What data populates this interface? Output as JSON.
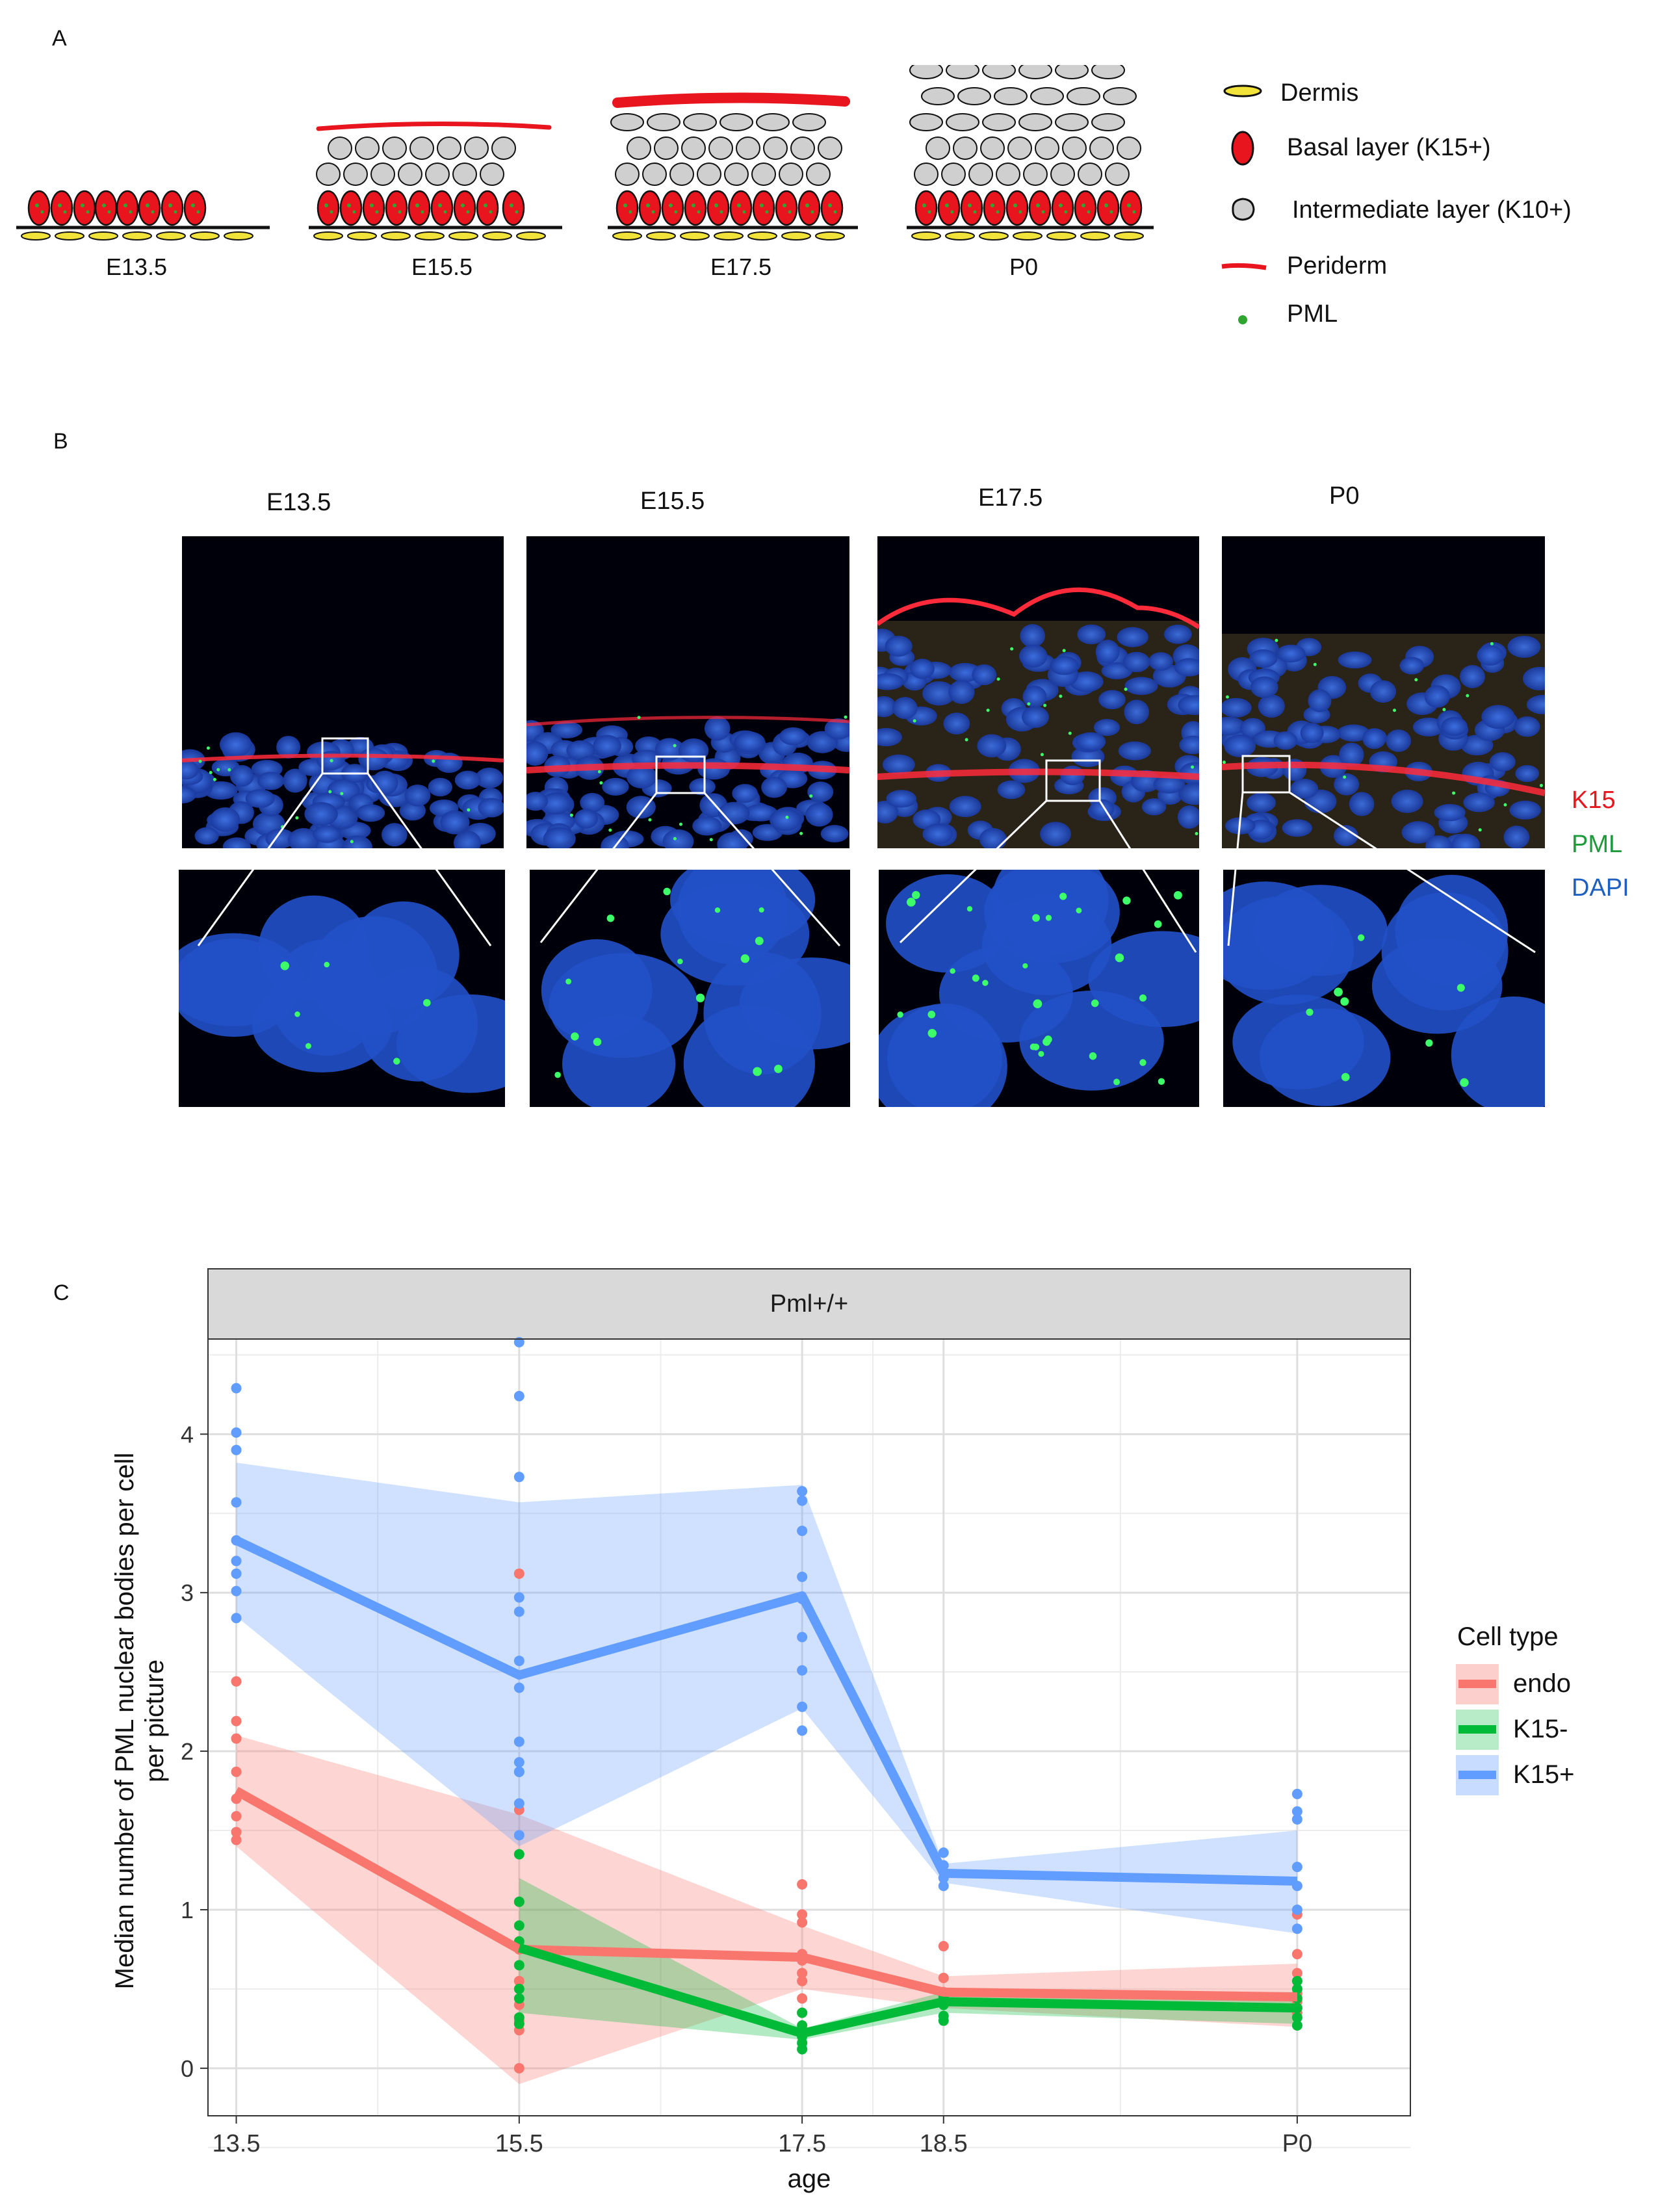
{
  "panel_a": {
    "letter": "A",
    "stages": [
      "E13.5",
      "E15.5",
      "E17.5",
      "P0"
    ],
    "legend": [
      {
        "icon": "dermis-icon",
        "label": "Dermis"
      },
      {
        "icon": "basal-cell-icon",
        "label": "Basal layer (K15+)"
      },
      {
        "icon": "intermediate-cell-icon",
        "label": "Intermediate layer (K10+)"
      },
      {
        "icon": "periderm-icon",
        "label": "Periderm"
      },
      {
        "icon": "pml-dot-icon",
        "label": "PML"
      }
    ],
    "colors": {
      "basal": "#e8141e",
      "intermediate": "#cfcfcf",
      "dermis": "#f2e33a",
      "periderm": "#e8141e",
      "pml": "#2fa52f"
    }
  },
  "panel_b": {
    "letter": "B",
    "stages": [
      "E13.5",
      "E15.5",
      "E17.5",
      "P0"
    ],
    "channels": [
      {
        "label": "K15",
        "color": "#e8141e"
      },
      {
        "label": "PML",
        "color": "#1f9a3a"
      },
      {
        "label": "DAPI",
        "color": "#1f5fbf"
      }
    ]
  },
  "panel_c": {
    "letter": "C",
    "facet": "Pml+/+",
    "legend_title": "Cell type",
    "legend": [
      {
        "label": "endo",
        "color": "#f8766d"
      },
      {
        "label": "K15-",
        "color": "#00ba38"
      },
      {
        "label": "K15+",
        "color": "#619cff"
      }
    ]
  },
  "chart_data": {
    "type": "line",
    "title": "Pml+/+",
    "xlabel": "age",
    "ylabel": "Median number of PML nuclear bodies per cell per picture",
    "categories": [
      "13.5",
      "15.5",
      "17.5",
      "18.5",
      "P0"
    ],
    "x_positions": [
      13.5,
      15.5,
      17.5,
      18.5,
      21
    ],
    "yticks": [
      0,
      1,
      2,
      3,
      4
    ],
    "ylim": [
      -0.3,
      4.6
    ],
    "grid": true,
    "legend_position": "right",
    "series": [
      {
        "name": "endo",
        "color": "#f8766d",
        "x": [
          13.5,
          15.5,
          17.5,
          18.5,
          21
        ],
        "values": [
          1.75,
          0.75,
          0.7,
          0.48,
          0.45
        ],
        "ci_low": [
          1.4,
          -0.1,
          0.5,
          0.38,
          0.26
        ],
        "ci_high": [
          2.1,
          1.6,
          0.9,
          0.58,
          0.66
        ],
        "points": [
          [
            13.5,
            2.44
          ],
          [
            13.5,
            2.19
          ],
          [
            13.5,
            2.08
          ],
          [
            13.5,
            1.87
          ],
          [
            13.5,
            1.7
          ],
          [
            13.5,
            1.59
          ],
          [
            13.5,
            1.49
          ],
          [
            13.5,
            1.44
          ],
          [
            15.5,
            3.12
          ],
          [
            15.5,
            1.63
          ],
          [
            15.5,
            1.05
          ],
          [
            15.5,
            0.75
          ],
          [
            15.5,
            0.55
          ],
          [
            15.5,
            0.4
          ],
          [
            15.5,
            0.3
          ],
          [
            15.5,
            0.24
          ],
          [
            15.5,
            0.0
          ],
          [
            17.5,
            1.16
          ],
          [
            17.5,
            0.97
          ],
          [
            17.5,
            0.92
          ],
          [
            17.5,
            0.72
          ],
          [
            17.5,
            0.68
          ],
          [
            17.5,
            0.6
          ],
          [
            17.5,
            0.55
          ],
          [
            17.5,
            0.44
          ],
          [
            17.5,
            0.35
          ],
          [
            18.5,
            0.77
          ],
          [
            18.5,
            0.57
          ],
          [
            18.5,
            0.48
          ],
          [
            18.5,
            0.42
          ],
          [
            21,
            0.97
          ],
          [
            21,
            0.72
          ],
          [
            21,
            0.6
          ],
          [
            21,
            0.47
          ],
          [
            21,
            0.42
          ],
          [
            21,
            0.35
          ]
        ]
      },
      {
        "name": "K15-",
        "color": "#00ba38",
        "x": [
          15.5,
          17.5,
          18.5,
          21
        ],
        "values": [
          0.76,
          0.22,
          0.42,
          0.38
        ],
        "ci_low": [
          0.35,
          0.18,
          0.35,
          0.28
        ],
        "ci_high": [
          1.2,
          0.25,
          0.48,
          0.48
        ],
        "points": [
          [
            15.5,
            1.87
          ],
          [
            15.5,
            1.35
          ],
          [
            15.5,
            1.05
          ],
          [
            15.5,
            0.9
          ],
          [
            15.5,
            0.8
          ],
          [
            15.5,
            0.65
          ],
          [
            15.5,
            0.5
          ],
          [
            15.5,
            0.44
          ],
          [
            15.5,
            0.32
          ],
          [
            15.5,
            0.28
          ],
          [
            17.5,
            0.35
          ],
          [
            17.5,
            0.27
          ],
          [
            17.5,
            0.2
          ],
          [
            17.5,
            0.16
          ],
          [
            17.5,
            0.12
          ],
          [
            18.5,
            0.45
          ],
          [
            18.5,
            0.4
          ],
          [
            18.5,
            0.33
          ],
          [
            18.5,
            0.3
          ],
          [
            21,
            0.55
          ],
          [
            21,
            0.5
          ],
          [
            21,
            0.44
          ],
          [
            21,
            0.38
          ],
          [
            21,
            0.32
          ],
          [
            21,
            0.27
          ]
        ]
      },
      {
        "name": "K15+",
        "color": "#619cff",
        "x": [
          13.5,
          15.5,
          17.5,
          18.5,
          21
        ],
        "values": [
          3.33,
          2.48,
          2.98,
          1.23,
          1.18
        ],
        "ci_low": [
          2.85,
          1.4,
          2.27,
          1.17,
          0.85
        ],
        "ci_high": [
          3.82,
          3.57,
          3.68,
          1.29,
          1.5
        ],
        "points": [
          [
            13.5,
            4.29
          ],
          [
            13.5,
            4.01
          ],
          [
            13.5,
            3.9
          ],
          [
            13.5,
            3.57
          ],
          [
            13.5,
            3.33
          ],
          [
            13.5,
            3.2
          ],
          [
            13.5,
            3.12
          ],
          [
            13.5,
            3.01
          ],
          [
            13.5,
            2.84
          ],
          [
            15.5,
            4.58
          ],
          [
            15.5,
            4.24
          ],
          [
            15.5,
            3.73
          ],
          [
            15.5,
            2.97
          ],
          [
            15.5,
            2.88
          ],
          [
            15.5,
            2.57
          ],
          [
            15.5,
            2.4
          ],
          [
            15.5,
            2.06
          ],
          [
            15.5,
            1.93
          ],
          [
            15.5,
            1.87
          ],
          [
            15.5,
            1.67
          ],
          [
            15.5,
            1.47
          ],
          [
            17.5,
            3.64
          ],
          [
            17.5,
            3.58
          ],
          [
            17.5,
            3.39
          ],
          [
            17.5,
            3.1
          ],
          [
            17.5,
            2.96
          ],
          [
            17.5,
            2.72
          ],
          [
            17.5,
            2.51
          ],
          [
            17.5,
            2.28
          ],
          [
            17.5,
            2.13
          ],
          [
            18.5,
            1.36
          ],
          [
            18.5,
            1.28
          ],
          [
            18.5,
            1.2
          ],
          [
            18.5,
            1.15
          ],
          [
            21,
            1.73
          ],
          [
            21,
            1.62
          ],
          [
            21,
            1.57
          ],
          [
            21,
            1.27
          ],
          [
            21,
            1.15
          ],
          [
            21,
            1.0
          ],
          [
            21,
            0.88
          ]
        ]
      }
    ]
  }
}
